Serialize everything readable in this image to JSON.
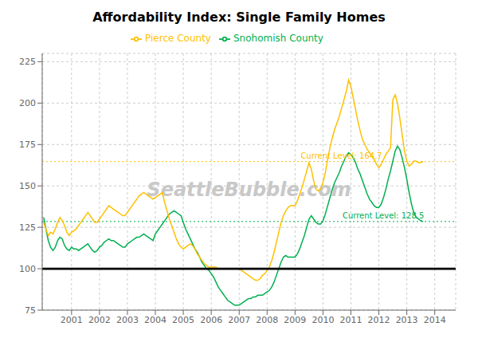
{
  "chart_data": {
    "type": "line",
    "title": "Affordability Index: Single Family Homes",
    "x": [
      2000,
      2000.0833333333333,
      2000.1666666666667,
      2000.25,
      2000.3333333333333,
      2000.4166666666667,
      2000.5,
      2000.5833333333333,
      2000.6666666666667,
      2000.75,
      2000.8333333333333,
      2000.9166666666667,
      2001,
      2001.0833333333333,
      2001.1666666666667,
      2001.25,
      2001.3333333333333,
      2001.4166666666667,
      2001.5,
      2001.5833333333333,
      2001.6666666666667,
      2001.75,
      2001.8333333333333,
      2001.9166666666667,
      2002,
      2002.0833333333333,
      2002.1666666666667,
      2002.25,
      2002.3333333333333,
      2002.4166666666667,
      2002.5,
      2002.5833333333333,
      2002.6666666666667,
      2002.75,
      2002.8333333333333,
      2002.9166666666667,
      2003,
      2003.0833333333333,
      2003.1666666666667,
      2003.25,
      2003.3333333333333,
      2003.4166666666667,
      2003.5,
      2003.5833333333333,
      2003.6666666666667,
      2003.75,
      2003.8333333333333,
      2003.9166666666667,
      2004,
      2004.0833333333333,
      2004.1666666666667,
      2004.25,
      2004.3333333333333,
      2004.4166666666667,
      2004.5,
      2004.5833333333333,
      2004.6666666666667,
      2004.75,
      2004.8333333333333,
      2004.9166666666667,
      2005,
      2005.0833333333333,
      2005.1666666666667,
      2005.25,
      2005.3333333333333,
      2005.4166666666667,
      2005.5,
      2005.5833333333333,
      2005.6666666666667,
      2005.75,
      2005.8333333333333,
      2005.9166666666667,
      2006,
      2006.0833333333333,
      2006.1666666666667,
      2006.25,
      2006.3333333333333,
      2006.4166666666667,
      2006.5,
      2006.5833333333333,
      2006.6666666666667,
      2006.75,
      2006.8333333333333,
      2006.9166666666667,
      2007,
      2007.0833333333333,
      2007.1666666666667,
      2007.25,
      2007.3333333333333,
      2007.4166666666667,
      2007.5,
      2007.5833333333333,
      2007.6666666666667,
      2007.75,
      2007.8333333333333,
      2007.9166666666667,
      2008,
      2008.0833333333333,
      2008.1666666666667,
      2008.25,
      2008.3333333333333,
      2008.4166666666667,
      2008.5,
      2008.5833333333333,
      2008.6666666666667,
      2008.75,
      2008.8333333333333,
      2008.9166666666667,
      2009,
      2009.0833333333333,
      2009.1666666666667,
      2009.25,
      2009.3333333333333,
      2009.4166666666667,
      2009.5,
      2009.5833333333333,
      2009.6666666666667,
      2009.75,
      2009.8333333333333,
      2009.9166666666667,
      2010,
      2010.0833333333333,
      2010.1666666666667,
      2010.25,
      2010.3333333333333,
      2010.4166666666667,
      2010.5,
      2010.5833333333333,
      2010.6666666666667,
      2010.75,
      2010.8333333333333,
      2010.9166666666667,
      2011,
      2011.0833333333333,
      2011.1666666666667,
      2011.25,
      2011.3333333333333,
      2011.4166666666667,
      2011.5,
      2011.5833333333333,
      2011.6666666666667,
      2011.75,
      2011.8333333333333,
      2011.9166666666667,
      2012,
      2012.0833333333333,
      2012.1666666666667,
      2012.25,
      2012.3333333333333,
      2012.4166666666667,
      2012.5,
      2012.5833333333333,
      2012.6666666666667,
      2012.75,
      2012.8333333333333,
      2012.9166666666667,
      2013,
      2013.0833333333333,
      2013.1666666666667,
      2013.25,
      2013.3333333333333,
      2013.4166666666667,
      2013.5,
      2013.5833333333333
    ],
    "series": [
      {
        "name": "Snohomish County",
        "color": "#00b050",
        "values": [
          131,
          124,
          117,
          113,
          111,
          113,
          117,
          119,
          118,
          114,
          112,
          111,
          113,
          112,
          112,
          111,
          112,
          113,
          114,
          115,
          113,
          111,
          110,
          111,
          113,
          114,
          116,
          117,
          118,
          117,
          117,
          116,
          115,
          114,
          113,
          113,
          115,
          116,
          117,
          118,
          119,
          119,
          120,
          121,
          120,
          119,
          118,
          117,
          121,
          123,
          125,
          127,
          129,
          131,
          133,
          134,
          135,
          134,
          133,
          132,
          128,
          124,
          121,
          118,
          115,
          112,
          110,
          107,
          104,
          102,
          100,
          99,
          97,
          95,
          92,
          89,
          87,
          85,
          83,
          81,
          80,
          79,
          78,
          78,
          78,
          79,
          80,
          81,
          82,
          82,
          83,
          83,
          84,
          84,
          84,
          85,
          86,
          87,
          89,
          92,
          96,
          100,
          104,
          107,
          108,
          107,
          107,
          107,
          107,
          109,
          112,
          116,
          120,
          125,
          130,
          132,
          130,
          128,
          127,
          127,
          129,
          133,
          138,
          143,
          148,
          152,
          155,
          158,
          162,
          165,
          168,
          170,
          169,
          167,
          164,
          160,
          157,
          153,
          149,
          145,
          142,
          140,
          138,
          137,
          137,
          139,
          143,
          148,
          154,
          159,
          165,
          171,
          174,
          172,
          167,
          161,
          154,
          146,
          139,
          134,
          131,
          130,
          129,
          128.5
        ]
      },
      {
        "name": "Pierce County",
        "color": "#ffc000",
        "values": [
          128,
          124,
          120,
          122,
          121,
          124,
          128,
          131,
          129,
          126,
          122,
          120,
          122,
          123,
          124,
          126,
          128,
          130,
          132,
          134,
          132,
          130,
          128,
          128,
          130,
          132,
          134,
          136,
          138,
          137,
          136,
          135,
          134,
          133,
          132,
          132,
          134,
          136,
          138,
          140,
          142,
          144,
          145,
          146,
          145,
          144,
          143,
          142,
          143,
          144,
          145,
          146,
          140,
          135,
          130,
          126,
          122,
          118,
          115,
          113,
          112,
          113,
          114,
          115,
          114,
          112,
          109,
          107,
          105,
          103,
          102,
          101,
          101,
          101,
          101,
          100,
          100,
          100,
          100,
          100,
          100,
          100,
          100,
          100,
          100,
          99,
          98,
          97,
          96,
          95,
          94,
          93,
          93,
          94,
          96,
          97,
          99,
          101,
          105,
          110,
          116,
          122,
          128,
          132,
          135,
          137,
          138,
          138,
          138,
          141,
          145,
          149,
          154,
          159,
          164,
          160,
          153,
          148,
          147,
          148,
          152,
          158,
          166,
          173,
          179,
          184,
          188,
          192,
          197,
          202,
          207,
          214,
          210,
          203,
          196,
          189,
          183,
          178,
          175,
          172,
          170,
          168,
          166,
          163,
          161,
          163,
          166,
          169,
          171,
          173,
          202,
          205,
          200,
          191,
          181,
          171,
          165,
          162,
          163,
          165,
          165,
          164,
          164,
          164.7
        ]
      }
    ],
    "xlim": [
      1999.95,
      2014.75
    ],
    "xticks": [
      2001,
      2002,
      2003,
      2004,
      2005,
      2006,
      2007,
      2008,
      2009,
      2010,
      2011,
      2012,
      2013,
      2014
    ],
    "ylim": [
      75,
      230
    ],
    "yticks": [
      75,
      100,
      125,
      150,
      175,
      200,
      225
    ],
    "reference_lines": [
      {
        "value": 128.5,
        "color": "#00b050",
        "line_style": "dotted"
      },
      {
        "value": 164.7,
        "color": "#ffc000",
        "line_style": "dotted"
      },
      {
        "value": 100,
        "color": "black",
        "line_style": "solid"
      }
    ],
    "annotations": [
      {
        "text": "Current Level: 164.7",
        "x": 2009.2,
        "y": 164.7,
        "color": "#ffc000"
      },
      {
        "text": "Current Level: 128.5",
        "x": 2010.7,
        "y": 128.5,
        "color": "#00b050"
      },
      {
        "text": "SeattleBubble.com",
        "color": "#c8c8c8"
      }
    ],
    "grid": true,
    "legend": "top"
  }
}
